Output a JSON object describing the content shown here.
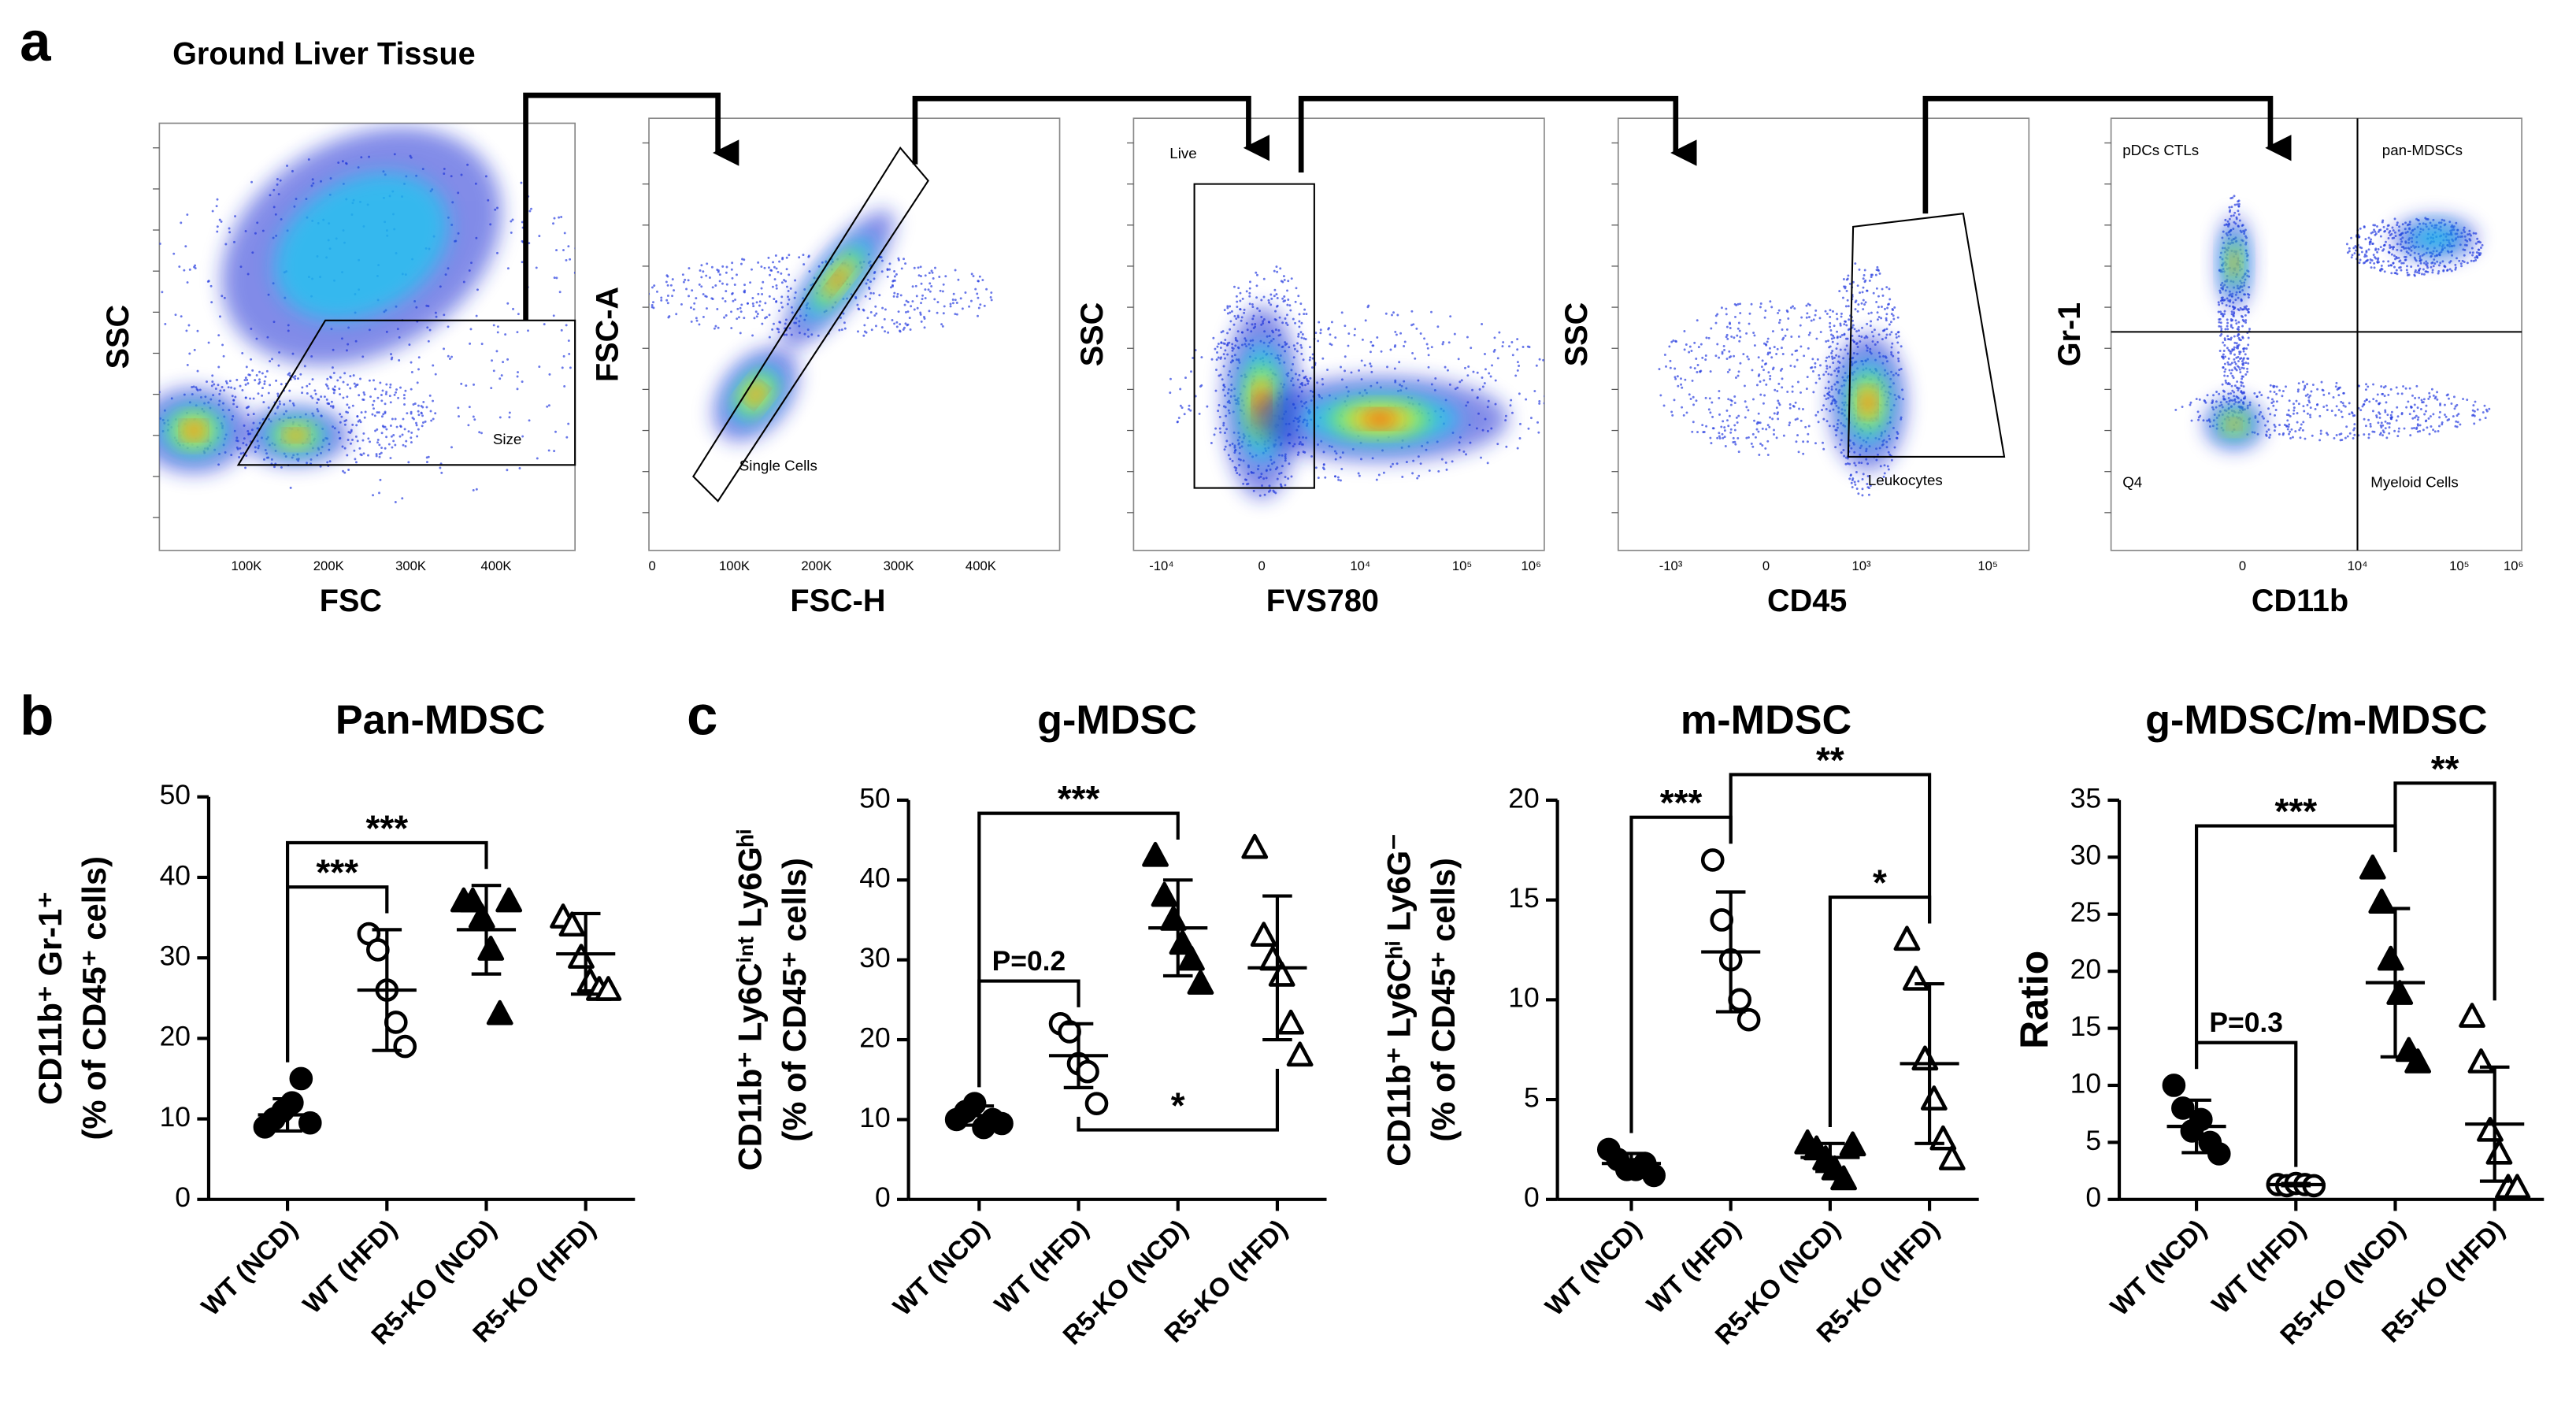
{
  "panels": {
    "a": "a",
    "b": "b",
    "c": "c"
  },
  "gating": {
    "title": "Ground Liver Tissue",
    "plots": [
      {
        "ylabel": "SSC",
        "xlabel": "FSC",
        "xticks": [
          "100K",
          "200K",
          "300K",
          "400K"
        ],
        "gates": [
          "Size"
        ]
      },
      {
        "ylabel": "FSC-A",
        "xlabel": "FSC-H",
        "xticks": [
          "0",
          "100K",
          "200K",
          "300K",
          "400K"
        ],
        "gates": [
          "Single Cells"
        ]
      },
      {
        "ylabel": "SSC",
        "xlabel": "FVS780",
        "xticks": [
          "-10⁴",
          "0",
          "10⁴",
          "10⁵",
          "10⁶"
        ],
        "gates": [
          "Live"
        ]
      },
      {
        "ylabel": "SSC",
        "xlabel": "CD45",
        "xticks": [
          "-10³",
          "0",
          "10³",
          "10⁵"
        ],
        "gates": [
          "Leukocytes"
        ]
      },
      {
        "ylabel": "Gr-1",
        "xlabel": "CD11b",
        "xticks": [
          "0",
          "10⁴",
          "10⁵",
          "10⁶"
        ],
        "gates": [
          "pDCs CTLs",
          "pan-MDSCs",
          "Q4",
          "Myeloid Cells"
        ]
      }
    ]
  },
  "chart_data": [
    {
      "type": "dot",
      "title": "Pan-MDSC",
      "ylabel": [
        "CD11b⁺ Gr-1⁺",
        "(% of CD45⁺ cells)"
      ],
      "ylim": [
        0,
        50
      ],
      "yticks": [
        0,
        10,
        20,
        30,
        40,
        50
      ],
      "series": [
        {
          "name": "WT (NCD)",
          "marker": "filled-circle",
          "values": [
            9,
            10,
            11,
            12,
            15,
            9.5
          ],
          "mean": 10.5,
          "sd": 2
        },
        {
          "name": "WT (HFD)",
          "marker": "open-circle",
          "values": [
            33,
            31,
            26,
            22,
            19
          ],
          "mean": 26,
          "sd": 7.5
        },
        {
          "name": "R5-KO (NCD)",
          "marker": "filled-triangle",
          "values": [
            37,
            37,
            35,
            31,
            23,
            37
          ],
          "mean": 33.5,
          "sd": 5.5
        },
        {
          "name": "R5-KO (HFD)",
          "marker": "open-triangle",
          "values": [
            35,
            34,
            30,
            27,
            26,
            26
          ],
          "mean": 30.5,
          "sd": 5
        }
      ],
      "annotations": [
        {
          "label": "***",
          "between": [
            "WT (NCD)",
            "WT (HFD)"
          ],
          "side": "above"
        },
        {
          "label": "***",
          "between": [
            "WT (NCD)",
            "R5-KO (NCD)"
          ],
          "side": "above"
        }
      ]
    },
    {
      "type": "dot",
      "title": "g-MDSC",
      "ylabel": [
        "CD11b⁺ Ly6Cⁱⁿᵗ Ly6Gʰⁱ",
        "(% of CD45⁺ cells)"
      ],
      "ylim": [
        0,
        50
      ],
      "yticks": [
        0,
        10,
        20,
        30,
        40,
        50
      ],
      "series": [
        {
          "name": "WT (NCD)",
          "marker": "filled-circle",
          "values": [
            10,
            11,
            12,
            9,
            10,
            9.5
          ],
          "mean": 10.5,
          "sd": 1.2
        },
        {
          "name": "WT (HFD)",
          "marker": "open-circle",
          "values": [
            22,
            21,
            17,
            16,
            12
          ],
          "mean": 18,
          "sd": 4
        },
        {
          "name": "R5-KO (NCD)",
          "marker": "filled-triangle",
          "values": [
            43,
            38,
            35,
            32,
            30,
            27
          ],
          "mean": 34,
          "sd": 6
        },
        {
          "name": "R5-KO (HFD)",
          "marker": "open-triangle",
          "values": [
            44,
            33,
            30,
            28,
            22,
            18
          ],
          "mean": 29,
          "sd": 9
        }
      ],
      "annotations": [
        {
          "label": "P=0.2",
          "between": [
            "WT (NCD)",
            "WT (HFD)"
          ],
          "side": "above"
        },
        {
          "label": "***",
          "between": [
            "WT (NCD)",
            "R5-KO (NCD)"
          ],
          "side": "above"
        },
        {
          "label": "*",
          "between": [
            "WT (HFD)",
            "R5-KO (HFD)"
          ],
          "side": "below"
        }
      ]
    },
    {
      "type": "dot",
      "title": "m-MDSC",
      "ylabel": [
        "CD11b⁺ Ly6Cʰⁱ Ly6G⁻",
        "(% of CD45⁺ cells)"
      ],
      "ylim": [
        0,
        20
      ],
      "yticks": [
        0,
        5,
        10,
        15,
        20
      ],
      "series": [
        {
          "name": "WT (NCD)",
          "marker": "filled-circle",
          "values": [
            2.5,
            2,
            1.5,
            1.5,
            1.8,
            1.2
          ],
          "mean": 1.8,
          "sd": 0.5
        },
        {
          "name": "WT (HFD)",
          "marker": "open-circle",
          "values": [
            17,
            14,
            12,
            10,
            9
          ],
          "mean": 12.4,
          "sd": 3
        },
        {
          "name": "R5-KO (NCD)",
          "marker": "filled-triangle",
          "values": [
            2.8,
            2.5,
            2,
            1.5,
            1,
            2.7
          ],
          "mean": 2.1,
          "sd": 0.7
        },
        {
          "name": "R5-KO (HFD)",
          "marker": "open-triangle",
          "values": [
            13,
            11,
            7,
            5,
            3,
            2
          ],
          "mean": 6.8,
          "sd": 4
        }
      ],
      "annotations": [
        {
          "label": "***",
          "between": [
            "WT (NCD)",
            "WT (HFD)"
          ],
          "side": "above"
        },
        {
          "label": "*",
          "between": [
            "R5-KO (NCD)",
            "R5-KO (HFD)"
          ],
          "side": "above"
        },
        {
          "label": "**",
          "between": [
            "WT (HFD)",
            "R5-KO (HFD)"
          ],
          "side": "above"
        }
      ]
    },
    {
      "type": "dot",
      "title": "g-MDSC/m-MDSC",
      "ylabel": [
        "Ratio"
      ],
      "ylim": [
        0,
        35
      ],
      "yticks": [
        0,
        5,
        10,
        15,
        20,
        25,
        30,
        35
      ],
      "series": [
        {
          "name": "WT (NCD)",
          "marker": "filled-circle",
          "values": [
            10,
            8,
            6,
            7,
            5,
            4
          ],
          "mean": 6.4,
          "sd": 2.3
        },
        {
          "name": "WT (HFD)",
          "marker": "open-circle",
          "values": [
            1.3,
            1.2,
            1.4,
            1.3,
            1.2
          ],
          "mean": 1.3,
          "sd": 0.1
        },
        {
          "name": "R5-KO (NCD)",
          "marker": "filled-triangle",
          "values": [
            29,
            26,
            21,
            18,
            13,
            12
          ],
          "mean": 19,
          "sd": 6.5
        },
        {
          "name": "R5-KO (HFD)",
          "marker": "open-triangle",
          "values": [
            16,
            12,
            6,
            4,
            1,
            1
          ],
          "mean": 6.6,
          "sd": 5
        }
      ],
      "annotations": [
        {
          "label": "P=0.3",
          "between": [
            "WT (NCD)",
            "WT (HFD)"
          ],
          "side": "above"
        },
        {
          "label": "***",
          "between": [
            "WT (NCD)",
            "R5-KO (NCD)"
          ],
          "side": "above"
        },
        {
          "label": "**",
          "between": [
            "R5-KO (NCD)",
            "R5-KO (HFD)"
          ],
          "side": "above"
        }
      ]
    }
  ]
}
